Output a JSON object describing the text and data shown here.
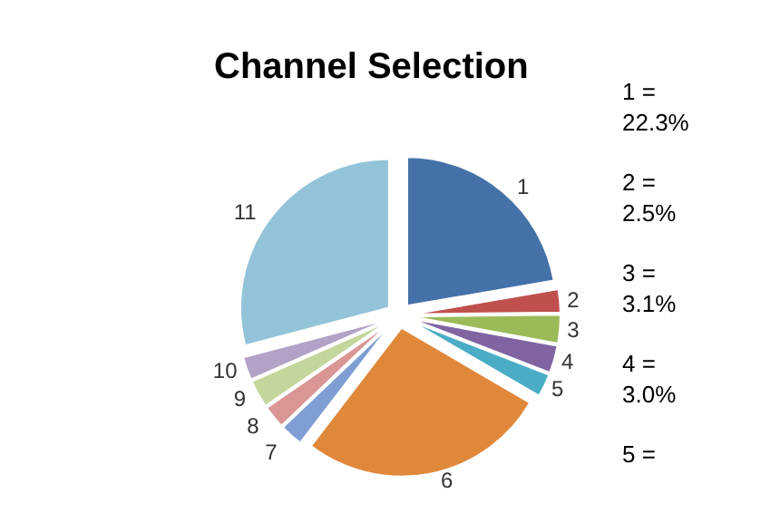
{
  "chart_data": {
    "type": "pie",
    "title": "Channel Selection",
    "categories": [
      "1",
      "2",
      "3",
      "4",
      "5",
      "6",
      "7",
      "8",
      "9",
      "10",
      "11"
    ],
    "values": [
      22.3,
      2.5,
      3.1,
      3.0,
      2.5,
      27,
      2.5,
      2.5,
      3,
      2.5,
      29.1
    ],
    "colors": [
      "#4472a8",
      "#c0504d",
      "#9bbb59",
      "#8064a2",
      "#4bacc6",
      "#e0883a",
      "#7f9fd4",
      "#d99694",
      "#c3d69b",
      "#b3a2c7",
      "#93c3d9"
    ],
    "annotations": [
      "1 = 22.3%",
      "2 = 2.5%",
      "3 = 3.1%",
      "4 = 3.0%",
      "5 ="
    ],
    "legend": false
  }
}
